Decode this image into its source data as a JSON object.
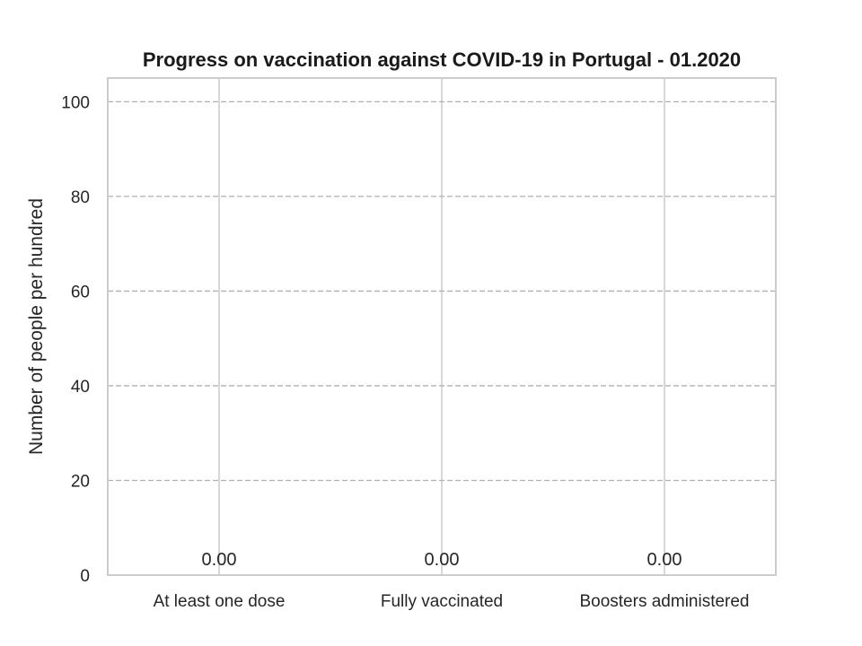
{
  "chart_data": {
    "type": "bar",
    "title": "Progress on vaccination against COVID-19 in Portugal - 01.2020",
    "xlabel": "",
    "ylabel": "Number of people per hundred",
    "categories": [
      "At least one dose",
      "Fully vaccinated",
      "Boosters administered"
    ],
    "values": [
      0,
      0,
      0
    ],
    "data_labels": [
      "0.00",
      "0.00",
      "0.00"
    ],
    "ylim": [
      0,
      105
    ],
    "yticks": [
      0,
      20,
      40,
      60,
      80,
      100
    ],
    "ytick_labels": [
      "0",
      "20",
      "40",
      "60",
      "80",
      "100"
    ],
    "grid": {
      "y": true,
      "y_style": "dashed",
      "x": true,
      "x_style": "solid"
    },
    "legend": false,
    "colors": {
      "frame": "#cccccc",
      "grid_y": "#b0b0b0",
      "grid_x": "#cccccc",
      "text": "#262626"
    }
  }
}
